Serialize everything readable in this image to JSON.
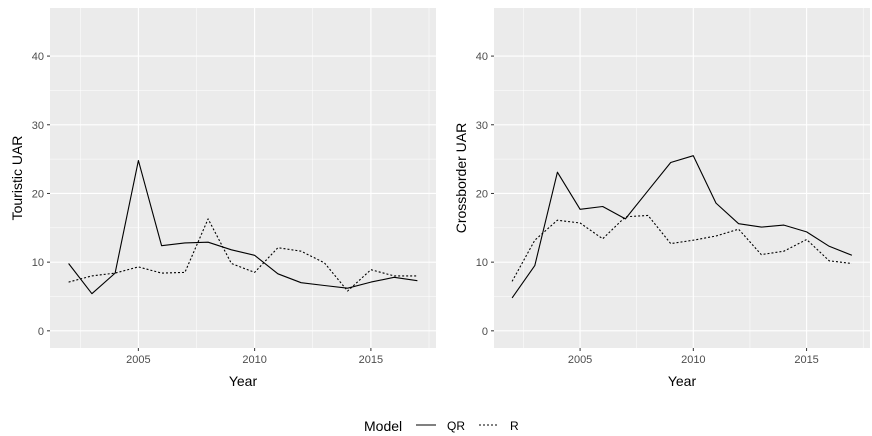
{
  "chart_data": [
    {
      "type": "line",
      "title": "",
      "xlabel": "Year",
      "ylabel": "Touristic UAR",
      "xlim": [
        2001.2,
        2017.8
      ],
      "ylim": [
        -2.5,
        47
      ],
      "xticks": [
        2005,
        2010,
        2015
      ],
      "xtick_labels": [
        "2005",
        "2010",
        "2015"
      ],
      "yticks": [
        0,
        10,
        20,
        30,
        40
      ],
      "ytick_labels": [
        "0",
        "10",
        "20",
        "30",
        "40"
      ],
      "grid": true,
      "x": [
        2002,
        2003,
        2004,
        2005,
        2006,
        2007,
        2008,
        2009,
        2010,
        2011,
        2012,
        2013,
        2014,
        2015,
        2016,
        2017
      ],
      "series": [
        {
          "name": "QR",
          "style": "solid",
          "values": [
            9.8,
            5.4,
            8.4,
            24.8,
            12.4,
            12.8,
            12.9,
            11.8,
            11.0,
            8.3,
            7.0,
            6.6,
            6.2,
            7.1,
            7.8,
            7.3
          ]
        },
        {
          "name": "R",
          "style": "dotted",
          "values": [
            7.1,
            8.0,
            8.4,
            9.3,
            8.4,
            8.5,
            16.3,
            9.8,
            8.5,
            12.1,
            11.6,
            9.9,
            5.8,
            8.9,
            8.0,
            8.0
          ]
        }
      ]
    },
    {
      "type": "line",
      "title": "",
      "xlabel": "Year",
      "ylabel": "Crossborder UAR",
      "xlim": [
        2001.2,
        2017.8
      ],
      "ylim": [
        -2.5,
        47
      ],
      "xticks": [
        2005,
        2010,
        2015
      ],
      "xtick_labels": [
        "2005",
        "2010",
        "2015"
      ],
      "yticks": [
        0,
        10,
        20,
        30,
        40
      ],
      "ytick_labels": [
        "0",
        "10",
        "20",
        "30",
        "40"
      ],
      "grid": true,
      "x": [
        2002,
        2003,
        2004,
        2005,
        2006,
        2007,
        2008,
        2009,
        2010,
        2011,
        2012,
        2013,
        2014,
        2015,
        2016,
        2017
      ],
      "series": [
        {
          "name": "QR",
          "style": "solid",
          "values": [
            4.8,
            9.5,
            23.1,
            17.7,
            18.1,
            16.3,
            20.4,
            24.5,
            25.5,
            18.6,
            15.6,
            15.1,
            15.4,
            14.4,
            12.3,
            11.0
          ]
        },
        {
          "name": "R",
          "style": "dotted",
          "values": [
            7.2,
            13.2,
            16.1,
            15.7,
            13.4,
            16.6,
            16.8,
            12.7,
            13.2,
            13.8,
            14.8,
            11.1,
            11.6,
            13.3,
            10.2,
            9.8
          ]
        }
      ]
    }
  ],
  "legend": {
    "title": "Model",
    "placement": "bottom",
    "items": [
      {
        "label": "QR",
        "style": "solid"
      },
      {
        "label": "R",
        "style": "dotted"
      }
    ]
  },
  "colors": {
    "panel": "#ebebeb",
    "grid": "#ffffff",
    "line": "#000000",
    "tick_text": "#4d4d4d"
  }
}
